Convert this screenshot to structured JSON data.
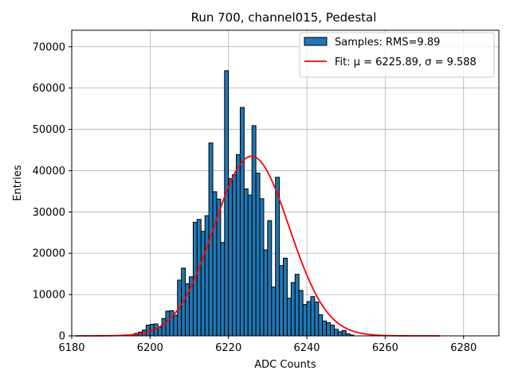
{
  "chart_data": {
    "type": "bar",
    "title": "Run 700, channel015, Pedestal",
    "xlabel": "ADC Counts",
    "ylabel": "Entries",
    "xlim": [
      6180,
      6289
    ],
    "ylim": [
      0,
      74000
    ],
    "xticks": [
      6180,
      6200,
      6220,
      6240,
      6260,
      6280
    ],
    "yticks": [
      0,
      10000,
      20000,
      30000,
      40000,
      50000,
      60000,
      70000
    ],
    "grid": true,
    "legend_position": "top-right",
    "colors": {
      "bars": "#1f77b4",
      "bar_edge": "#000000",
      "fit": "#ff0000",
      "grid": "#b0b0b0"
    },
    "series": [
      {
        "name": "Samples: RMS=9.89",
        "kind": "histogram",
        "bin_start": 6195,
        "bin_width": 1,
        "values": [
          300,
          600,
          900,
          1400,
          2600,
          2800,
          2900,
          2100,
          4200,
          6000,
          6100,
          5000,
          13500,
          16400,
          12600,
          14300,
          27500,
          28200,
          25300,
          29100,
          46700,
          34900,
          33100,
          22600,
          64200,
          38100,
          39000,
          43900,
          55300,
          35600,
          34100,
          50900,
          39400,
          33200,
          20800,
          27900,
          11800,
          38400,
          17000,
          18800,
          9100,
          12900,
          14900,
          11000,
          7600,
          8300,
          9500,
          8200,
          5100,
          3600,
          3200,
          2600,
          1600,
          1000,
          1300,
          500,
          200
        ]
      },
      {
        "name": "Fit: μ = 6225.89, σ = 9.588",
        "kind": "gaussian-fit",
        "mu": 6225.89,
        "sigma": 9.588,
        "amplitude": 43500,
        "x_range": [
          6181,
          6274
        ]
      }
    ]
  }
}
